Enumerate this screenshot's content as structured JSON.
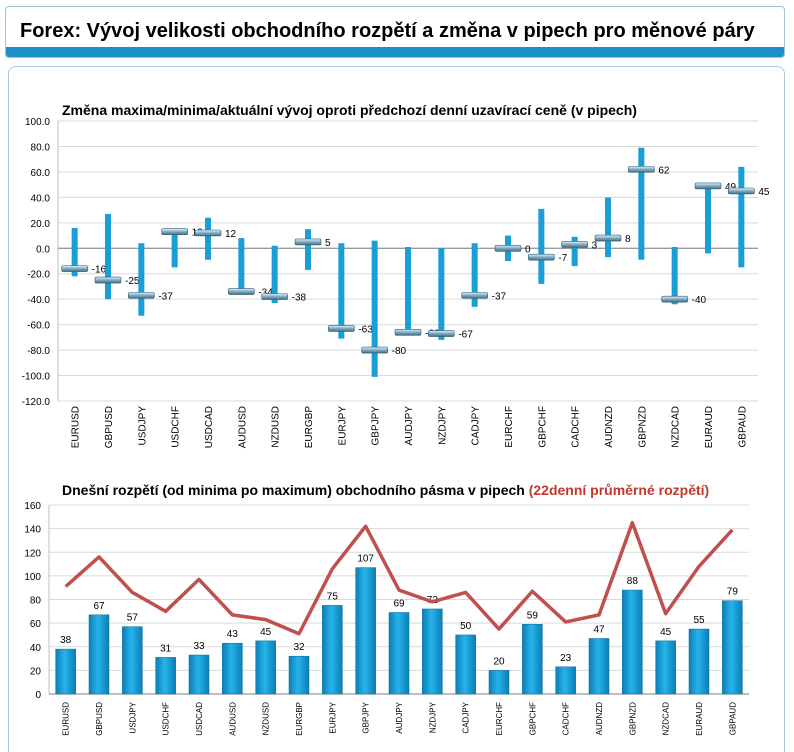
{
  "header": {
    "title": "Forex: Vývoj velikosti obchodního rozpětí a změna v pipech pro měnové páry"
  },
  "colors": {
    "bar": "#1a9ed6",
    "line": "#c0504d",
    "accent_title": "#c0392b",
    "header_bar": "#1e90c8"
  },
  "chart_data": [
    {
      "type": "bar",
      "title": "Změna maxima/minima/aktuální vývoj oproti předchozí denní uzavírací ceně (v pipech)",
      "categories": [
        "EURUSD",
        "GBPUSD",
        "USDJPY",
        "USDCHF",
        "USDCAD",
        "AUDUSD",
        "NZDUSD",
        "EURGBP",
        "EURJPY",
        "GBPJPY",
        "AUDJPY",
        "NZDJPY",
        "CADJPY",
        "EURCHF",
        "GBPCHF",
        "CADCHF",
        "AUDNZD",
        "GBPNZD",
        "NZDCAD",
        "EURAUD",
        "GBPAUD"
      ],
      "series": [
        {
          "values_high": [
            16,
            27,
            4,
            12,
            24,
            8,
            2,
            15,
            4,
            6,
            1,
            0,
            4,
            10,
            31,
            9,
            40,
            79,
            1,
            50,
            64
          ]
        },
        {
          "values_low": [
            -22,
            -40,
            -53,
            -15,
            -9,
            -35,
            -43,
            -17,
            -71,
            -101,
            -68,
            -72,
            -46,
            -10,
            -28,
            -14,
            -7,
            -9,
            -44,
            -4,
            -15
          ]
        },
        {
          "values_current": [
            -16,
            -25,
            -37,
            13,
            12,
            -34,
            -38,
            5,
            -63,
            -80,
            -66,
            -67,
            -37,
            0,
            -7,
            3,
            8,
            62,
            -40,
            49,
            45
          ]
        }
      ],
      "labels": [
        "-16",
        "-25",
        "-37",
        "13",
        "12",
        "-34",
        "-38",
        "5",
        "-63",
        "-80",
        "-66",
        "-67",
        "-37",
        "0",
        "-7",
        "3",
        "8",
        "62",
        "-40",
        "49",
        "45"
      ],
      "ylim": [
        -120,
        100
      ],
      "yticks": [
        "100.0",
        "80.0",
        "60.0",
        "40.0",
        "20.0",
        "0.0",
        "-20.0",
        "-40.0",
        "-60.0",
        "-80.0",
        "-100.0",
        "-120.0"
      ],
      "grid": true
    },
    {
      "type": "bar",
      "title": "Dnešní rozpětí (od minima po maximum) obchodního pásma v pipech",
      "title_highlight": "(22denní průměrné rozpětí)",
      "categories": [
        "EURUSD",
        "GBPUSD",
        "USDJPY",
        "USDCHF",
        "USDCAD",
        "AUDUSD",
        "NZDUSD",
        "EURGBP",
        "EURJPY",
        "GBPJPY",
        "AUDJPY",
        "NZDJPY",
        "CADJPY",
        "EURCHF",
        "GBPCHF",
        "CADCHF",
        "AUDNZD",
        "GBPNZD",
        "NZDCAD",
        "EURAUD",
        "GBPAUD"
      ],
      "values": [
        38,
        67,
        57,
        31,
        33,
        43,
        45,
        32,
        75,
        107,
        69,
        72,
        50,
        20,
        59,
        23,
        47,
        88,
        45,
        55,
        79
      ],
      "line_values": [
        91,
        116,
        86,
        70,
        97,
        67,
        63,
        51,
        106,
        142,
        88,
        78,
        86,
        55,
        87,
        61,
        67,
        145,
        68,
        108,
        139
      ],
      "ylim": [
        0,
        160
      ],
      "yticks": [
        "160",
        "140",
        "120",
        "100",
        "80",
        "60",
        "40",
        "20",
        "0"
      ],
      "grid": true
    }
  ]
}
